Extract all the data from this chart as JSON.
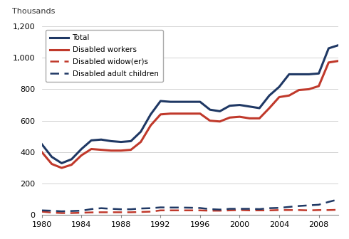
{
  "years": [
    1980,
    1981,
    1982,
    1983,
    1984,
    1985,
    1986,
    1987,
    1988,
    1989,
    1990,
    1991,
    1992,
    1993,
    1994,
    1995,
    1996,
    1997,
    1998,
    1999,
    2000,
    2001,
    2002,
    2003,
    2004,
    2005,
    2006,
    2007,
    2008,
    2009,
    2010
  ],
  "total": [
    450,
    370,
    330,
    355,
    420,
    475,
    480,
    470,
    465,
    470,
    530,
    640,
    725,
    720,
    720,
    720,
    720,
    670,
    660,
    695,
    700,
    690,
    680,
    760,
    815,
    895,
    895,
    895,
    900,
    1060,
    1080
  ],
  "disabled_workers": [
    400,
    325,
    300,
    320,
    380,
    420,
    415,
    410,
    410,
    415,
    465,
    570,
    640,
    645,
    645,
    645,
    645,
    600,
    595,
    620,
    625,
    615,
    615,
    680,
    750,
    760,
    795,
    800,
    820,
    970,
    980
  ],
  "disabled_widows": [
    22,
    16,
    13,
    13,
    15,
    17,
    18,
    18,
    18,
    18,
    20,
    22,
    30,
    30,
    30,
    30,
    30,
    28,
    28,
    30,
    32,
    30,
    30,
    30,
    32,
    32,
    32,
    30,
    32,
    32,
    34
  ],
  "disabled_adult_children": [
    30,
    28,
    24,
    26,
    28,
    38,
    44,
    40,
    37,
    37,
    42,
    44,
    49,
    48,
    48,
    47,
    45,
    38,
    35,
    40,
    40,
    40,
    38,
    44,
    46,
    52,
    58,
    62,
    66,
    84,
    100
  ],
  "total_color": "#1f3864",
  "workers_color": "#c0392b",
  "widows_color": "#c0392b",
  "adult_children_color": "#1f3864",
  "ylabel": "Thousands",
  "ylim": [
    0,
    1200
  ],
  "yticks": [
    0,
    200,
    400,
    600,
    800,
    1000,
    1200
  ],
  "xticks": [
    1980,
    1984,
    1988,
    1992,
    1996,
    2000,
    2004,
    2008
  ],
  "xlim": [
    1980,
    2010
  ],
  "background_color": "#ffffff",
  "grid_color": "#c0c0c0",
  "legend_labels": [
    "Total",
    "Disabled workers",
    "Disabled widow(er)s",
    "Disabled adult children"
  ]
}
